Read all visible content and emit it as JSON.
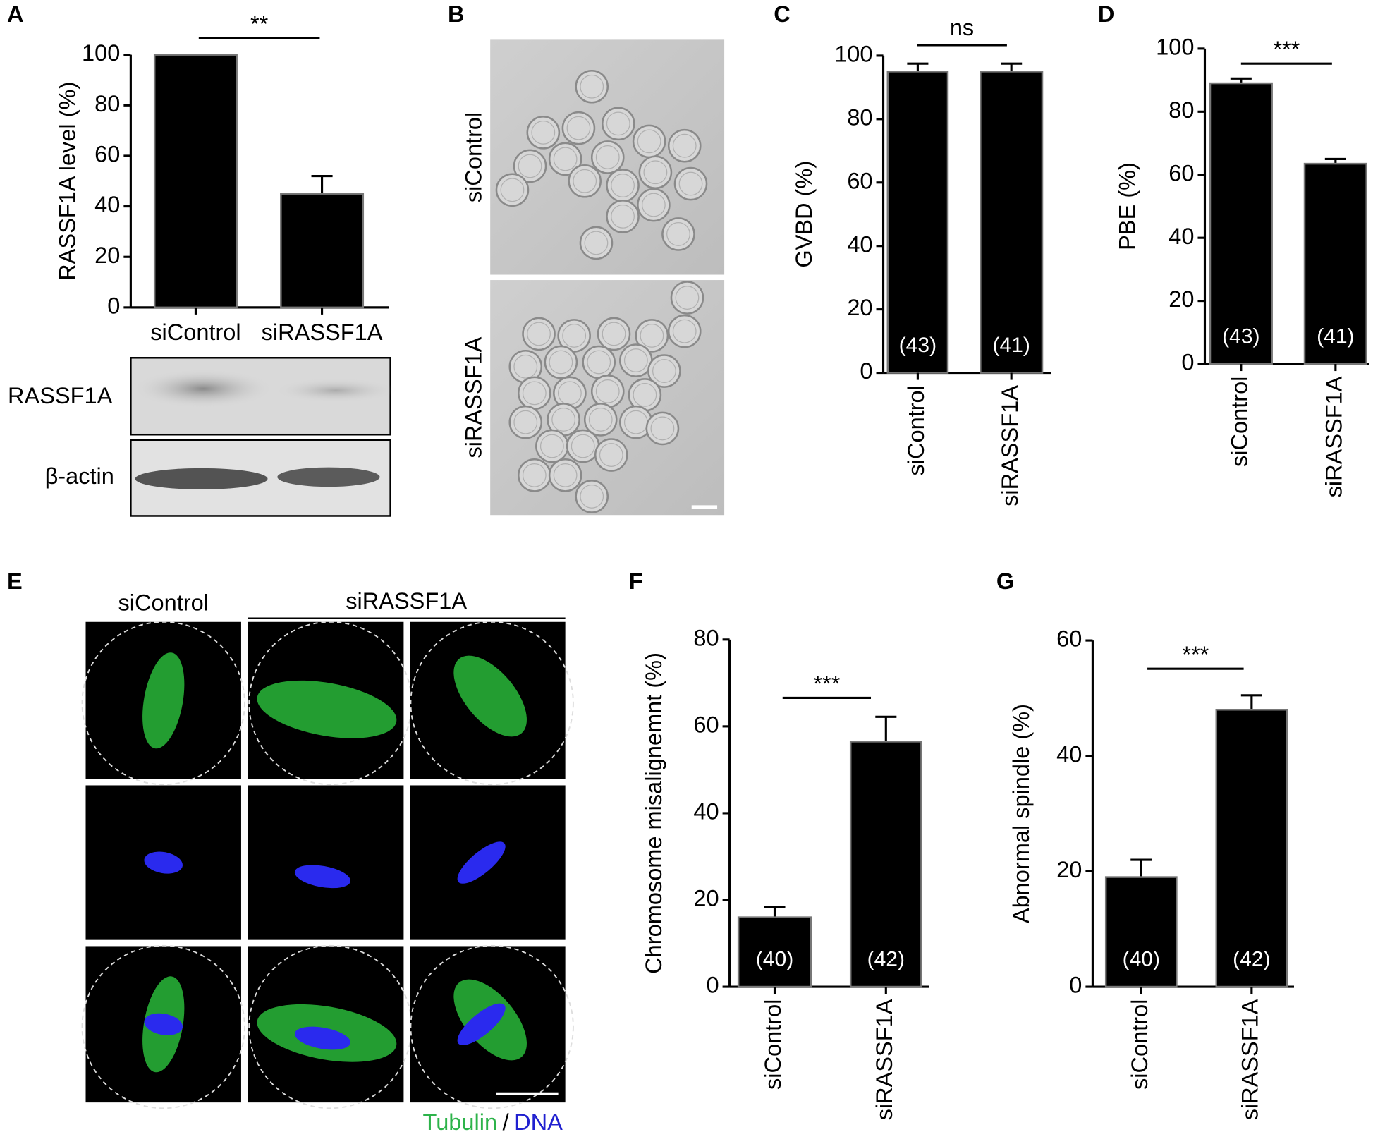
{
  "figure": {
    "panel_labels": [
      "A",
      "B",
      "C",
      "D",
      "E",
      "F",
      "G"
    ],
    "blot_labels": [
      "RASSF1A",
      "β-actin"
    ],
    "micrograph_labels": [
      "siControl",
      "siRASSF1A"
    ],
    "spindle_labels": [
      "siControl",
      "siRASSF1A"
    ],
    "stain_legend": {
      "tubulin": "Tubulin",
      "separator": "/",
      "dna": "DNA"
    }
  },
  "chart_data": [
    {
      "type": "bar",
      "ylabel": "RASSF1A level (%)",
      "categories": [
        "siControl",
        "siRASSF1A"
      ],
      "values": [
        100,
        45
      ],
      "errors": [
        0,
        7
      ],
      "color": "#000000",
      "ylim": [
        0,
        100
      ],
      "yticks": [
        0,
        20,
        40,
        60,
        80,
        100
      ],
      "annotation": "**"
    },
    {
      "type": "bar",
      "ylabel": "GVBD (%)",
      "categories": [
        "siControl",
        "siRASSF1A"
      ],
      "values": [
        95,
        95
      ],
      "errors": [
        2.5,
        2.5
      ],
      "value_labels": [
        "(43)",
        "(41)"
      ],
      "color": "#000000",
      "ylim": [
        0,
        100
      ],
      "yticks": [
        0,
        20,
        40,
        60,
        80,
        100
      ],
      "annotation": "ns"
    },
    {
      "type": "bar",
      "ylabel": "PBE (%)",
      "categories": [
        "siControl",
        "siRASSF1A"
      ],
      "values": [
        89,
        63.5
      ],
      "errors": [
        1.5,
        1.5
      ],
      "value_labels": [
        "(43)",
        "(41)"
      ],
      "color": "#000000",
      "ylim": [
        0,
        100
      ],
      "yticks": [
        0,
        20,
        40,
        60,
        80,
        100
      ],
      "annotation": "***"
    },
    {
      "type": "bar",
      "ylabel": "Chromosome misalignemnt (%)",
      "categories": [
        "siControl",
        "siRASSF1A"
      ],
      "values": [
        16,
        56.5
      ],
      "errors": [
        2.3,
        5.7
      ],
      "value_labels": [
        "(40)",
        "(42)"
      ],
      "color": "#000000",
      "ylim": [
        0,
        80
      ],
      "yticks": [
        0,
        20,
        40,
        60,
        80
      ],
      "annotation": "***"
    },
    {
      "type": "bar",
      "ylabel": "Abnormal spindle (%)",
      "categories": [
        "siControl",
        "siRASSF1A"
      ],
      "values": [
        19,
        48
      ],
      "errors": [
        3,
        2.5
      ],
      "value_labels": [
        "(40)",
        "(42)"
      ],
      "color": "#000000",
      "ylim": [
        0,
        60
      ],
      "yticks": [
        0,
        20,
        40,
        60
      ],
      "annotation": "***"
    }
  ]
}
